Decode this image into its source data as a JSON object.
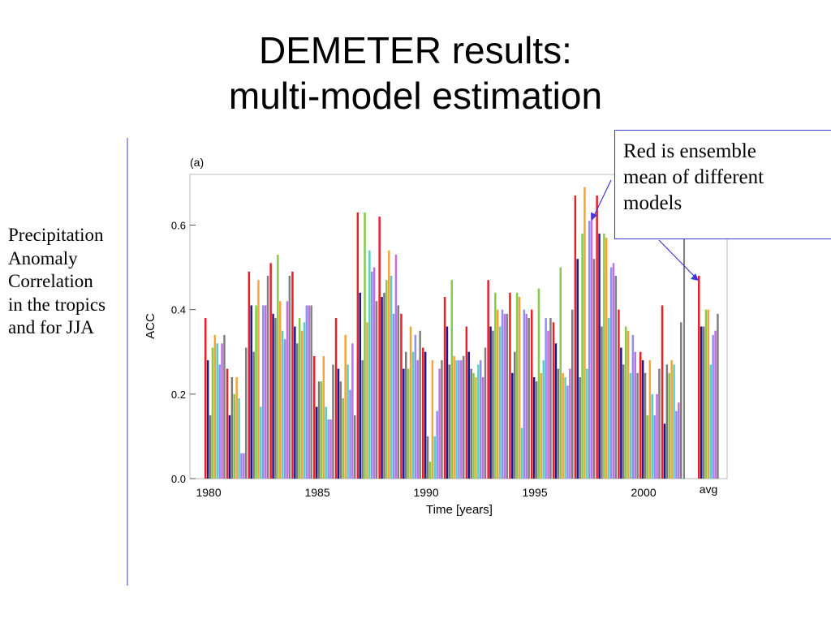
{
  "slide": {
    "title_line1": "DEMETER results:",
    "title_line2": "multi-model estimation",
    "side_note": [
      "Precipitation",
      "Anomaly",
      "Correlation",
      "in the tropics",
      "and for JJA"
    ],
    "callout": [
      "Red is ensemble",
      "mean of different",
      "models"
    ]
  },
  "chart_data": {
    "type": "bar",
    "panel_label": "(a)",
    "xlabel": "Time [years]",
    "ylabel": "ACC",
    "ylim": [
      0,
      0.72
    ],
    "y_ticks": [
      "0.0",
      "0.2",
      "0.4",
      "0.6"
    ],
    "x_tick_labels": [
      "1980",
      "1985",
      "1990",
      "1995",
      "2000",
      "avg"
    ],
    "grid": false,
    "categories": [
      "1980",
      "1981",
      "1982",
      "1983",
      "1984",
      "1985",
      "1986",
      "1987",
      "1988",
      "1989",
      "1990",
      "1991",
      "1992",
      "1993",
      "1994",
      "1995",
      "1996",
      "1997",
      "1998",
      "1999",
      "2000",
      "2001",
      "avg"
    ],
    "colors": [
      "#e8202a",
      "#1a1a8c",
      "#7a7a7a",
      "#88c94a",
      "#f2a43a",
      "#5ad0c0",
      "#8f8ff0",
      "#c070e0",
      "#7f7f7f"
    ],
    "series": [
      {
        "values": [
          0.38,
          0.26,
          0.49,
          0.51,
          0.49,
          0.29,
          0.38,
          0.63,
          0.62,
          0.39,
          0.31,
          0.43,
          0.36,
          0.47,
          0.44,
          0.4,
          0.37,
          0.67,
          0.67,
          0.4,
          0.3,
          0.41,
          0.48
        ]
      },
      {
        "values": [
          0.28,
          0.15,
          0.41,
          0.39,
          0.36,
          0.17,
          0.26,
          0.44,
          0.43,
          0.26,
          0.3,
          0.36,
          0.3,
          0.36,
          0.25,
          0.24,
          0.32,
          0.52,
          0.58,
          0.31,
          0.28,
          0.13,
          0.36
        ]
      },
      {
        "values": [
          0.15,
          0.24,
          0.3,
          0.38,
          0.32,
          0.23,
          0.23,
          0.28,
          0.44,
          0.3,
          0.1,
          0.27,
          0.26,
          0.35,
          0.3,
          0.23,
          0.26,
          0.24,
          0.36,
          0.27,
          0.25,
          0.27,
          0.36
        ]
      },
      {
        "values": [
          0.31,
          0.2,
          0.41,
          0.53,
          0.38,
          0.23,
          0.19,
          0.63,
          0.47,
          0.26,
          0.04,
          0.47,
          0.25,
          0.44,
          0.44,
          0.45,
          0.5,
          0.58,
          0.58,
          0.36,
          0.15,
          0.25,
          0.4
        ]
      },
      {
        "values": [
          0.34,
          0.24,
          0.47,
          0.42,
          0.35,
          0.29,
          0.34,
          0.37,
          0.54,
          0.36,
          0.28,
          0.29,
          0.24,
          0.4,
          0.43,
          0.25,
          0.25,
          0.69,
          0.57,
          0.35,
          0.28,
          0.28,
          0.4
        ]
      },
      {
        "values": [
          0.32,
          0.19,
          0.17,
          0.35,
          0.37,
          0.17,
          0.27,
          0.54,
          0.48,
          0.3,
          0.1,
          0.28,
          0.27,
          0.36,
          0.12,
          0.28,
          0.24,
          0.26,
          0.38,
          0.25,
          0.2,
          0.27,
          0.27
        ]
      },
      {
        "values": [
          0.27,
          0.06,
          0.41,
          0.33,
          0.41,
          0.14,
          0.21,
          0.49,
          0.39,
          0.34,
          0.16,
          0.28,
          0.28,
          0.4,
          0.4,
          0.38,
          0.22,
          0.61,
          0.5,
          0.34,
          0.15,
          0.16,
          0.34
        ]
      },
      {
        "values": [
          0.32,
          0.06,
          0.41,
          0.42,
          0.41,
          0.14,
          0.32,
          0.5,
          0.53,
          0.28,
          0.26,
          0.28,
          0.24,
          0.39,
          0.39,
          0.35,
          0.26,
          0.63,
          0.51,
          0.3,
          0.2,
          0.18,
          0.35
        ]
      },
      {
        "values": [
          0.34,
          0.31,
          0.48,
          0.48,
          0.41,
          0.27,
          0.15,
          0.42,
          0.41,
          0.35,
          0.28,
          0.29,
          0.31,
          0.39,
          0.38,
          0.38,
          0.4,
          0.52,
          0.48,
          0.25,
          0.26,
          0.37,
          0.39
        ]
      }
    ]
  }
}
